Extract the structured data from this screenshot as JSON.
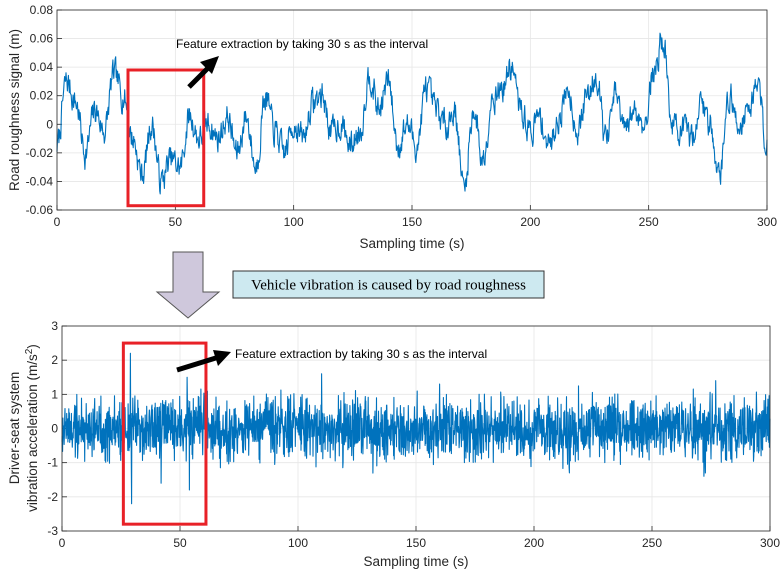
{
  "chart_data": [
    {
      "type": "line",
      "xlabel": "Sampling time (s)",
      "ylabel": "Road roughness signal (m)",
      "xlim": [
        0,
        300
      ],
      "ylim": [
        -0.06,
        0.08
      ],
      "xticks": [
        "0",
        "50",
        "100",
        "150",
        "200",
        "250",
        "300"
      ],
      "yticks": [
        "-0.06",
        "-0.04",
        "-0.02",
        "0",
        "0.02",
        "0.04",
        "0.06",
        "0.08"
      ],
      "grid": true,
      "line_color": "#0072BD",
      "anchors": {
        "x": [
          0,
          4,
          8,
          12,
          16,
          20,
          24,
          28,
          32,
          36,
          40,
          44,
          48,
          52,
          56,
          60,
          64,
          68,
          72,
          76,
          80,
          84,
          88,
          92,
          96,
          100,
          104,
          108,
          112,
          116,
          120,
          124,
          128,
          132,
          136,
          140,
          144,
          148,
          152,
          156,
          160,
          164,
          168,
          172,
          176,
          180,
          184,
          188,
          192,
          196,
          200,
          204,
          208,
          212,
          216,
          220,
          224,
          228,
          232,
          236,
          240,
          244,
          248,
          252,
          256,
          260,
          264,
          268,
          272,
          276,
          280,
          284,
          288,
          292,
          296,
          300
        ],
        "y": [
          -0.015,
          0.03,
          0.015,
          -0.02,
          0.01,
          -0.005,
          0.035,
          0.02,
          -0.01,
          -0.035,
          0.0,
          -0.04,
          -0.025,
          -0.03,
          0.005,
          -0.01,
          0.0,
          -0.01,
          0.005,
          -0.02,
          0.005,
          -0.03,
          0.02,
          -0.005,
          -0.02,
          0.0,
          -0.01,
          0.015,
          0.02,
          -0.005,
          0.0,
          -0.015,
          -0.005,
          0.035,
          0.01,
          0.03,
          -0.015,
          0.0,
          -0.015,
          0.025,
          0.01,
          0.0,
          0.01,
          -0.045,
          0.01,
          -0.025,
          0.02,
          0.025,
          0.04,
          0.01,
          -0.005,
          0.005,
          -0.015,
          0.005,
          0.025,
          -0.005,
          0.02,
          0.035,
          -0.01,
          0.02,
          -0.005,
          0.01,
          0.0,
          0.035,
          0.06,
          0.0,
          -0.005,
          -0.01,
          0.015,
          0.0,
          -0.035,
          0.02,
          0.0,
          0.01,
          0.03,
          -0.015
        ]
      },
      "highlight": {
        "x_range": [
          30,
          62
        ],
        "y_range": [
          -0.057,
          0.038
        ]
      },
      "annotation": "Feature extraction by taking 30 s as the interval"
    },
    {
      "type": "line",
      "xlabel": "Sampling time (s)",
      "ylabel_lines": [
        "Driver-seat system",
        "vibration acceleration (m/s",
        "2",
        ")"
      ],
      "xlim": [
        0,
        300
      ],
      "ylim": [
        -3,
        3
      ],
      "xticks": [
        "0",
        "50",
        "100",
        "150",
        "200",
        "250",
        "300"
      ],
      "yticks": [
        "-3",
        "-2",
        "-1",
        "0",
        "1",
        "2",
        "3"
      ],
      "grid": true,
      "line_color": "#0072BD",
      "amplitude": 0.75,
      "spikes": [
        {
          "x": 29,
          "y": 2.2
        },
        {
          "x": 29.5,
          "y": -2.2
        },
        {
          "x": 42,
          "y": -1.6
        },
        {
          "x": 54,
          "y": -1.8
        },
        {
          "x": 53,
          "y": 1.5
        },
        {
          "x": 110,
          "y": 1.6
        },
        {
          "x": 160,
          "y": 1.3
        },
        {
          "x": 277,
          "y": 1.4
        },
        {
          "x": 272,
          "y": -1.4
        },
        {
          "x": 215,
          "y": -1.3
        }
      ],
      "highlight": {
        "x_range": [
          26,
          61
        ],
        "y_range": [
          -2.8,
          2.5
        ]
      },
      "annotation": "Feature extraction by taking 30 s as the interval"
    }
  ],
  "banner": {
    "text": "Vehicle vibration is caused by road roughness",
    "bg": "#cde9f0"
  },
  "colors": {
    "highlight_box": "#e82127",
    "arrow_fill": "#cfc8dc"
  }
}
